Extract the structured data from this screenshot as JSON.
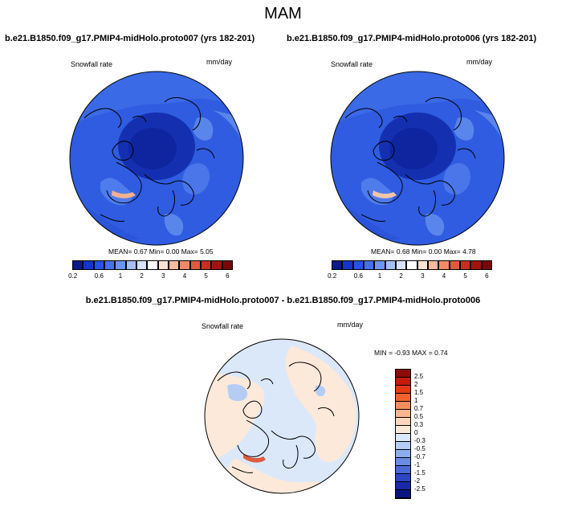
{
  "title": "MAM",
  "panels": [
    {
      "case": "b.e21.B1850.f09_g17.PMIP4-midHolo.proto007 (yrs 182-201)",
      "variable": "Snowfall rate",
      "units": "mm/day",
      "stats": "MEAN=   0.67  Min=   0.00  Max=   5.05"
    },
    {
      "case": "b.e21.B1850.f09_g17.PMIP4-midHolo.proto006 (yrs 182-201)",
      "variable": "Snowfall rate",
      "units": "mm/day",
      "stats": "MEAN=   0.68  Min=   0.00  Max=   4.78"
    }
  ],
  "diff": {
    "title": "b.e21.B1850.f09_g17.PMIP4-midHolo.proto007 - b.e21.B1850.f09_g17.PMIP4-midHolo.proto006",
    "variable": "Snowfall rate",
    "units": "mm/day",
    "stats": "MIN =   -0.93 MAX =    0.74"
  },
  "colorbar_main": {
    "labels": [
      "0.2",
      "0.6",
      "1",
      "2",
      "3",
      "4",
      "5",
      "6"
    ],
    "colors": [
      "#0a1a8c",
      "#1535c8",
      "#2552e8",
      "#4570f0",
      "#6e95f4",
      "#a3bff8",
      "#d5e3fb",
      "#ffffff",
      "#fde2d2",
      "#f7bb9f",
      "#f08a66",
      "#e05a3d",
      "#c5301e",
      "#a0140e",
      "#7a0606"
    ]
  },
  "colorbar_diff": {
    "labels": [
      "2.5",
      "2",
      "1.5",
      "1",
      "0.7",
      "0.5",
      "0.3",
      "0",
      "-0.3",
      "-0.5",
      "-0.7",
      "-1",
      "-1.5",
      "-2",
      "-2.5"
    ],
    "colors": [
      "#8c0a0a",
      "#c41a08",
      "#e43a12",
      "#f4622e",
      "#f88e5c",
      "#fbb58f",
      "#fdd6bd",
      "#fde9da",
      "#dbe8fa",
      "#b5cdf5",
      "#8eadee",
      "#6a8be6",
      "#4a6ad8",
      "#2c46c4",
      "#1828a8",
      "#0a1480"
    ]
  }
}
